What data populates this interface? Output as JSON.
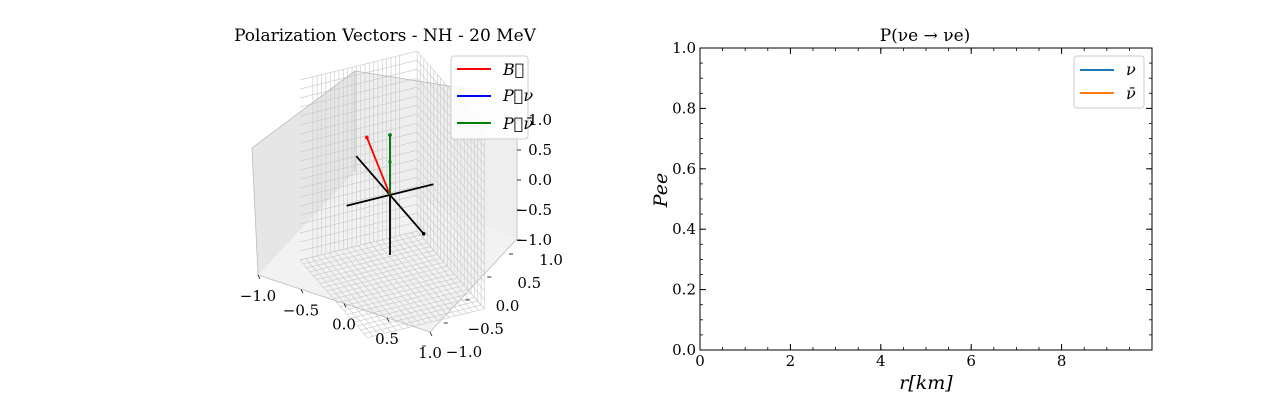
{
  "colors": {
    "B": "#ff0000",
    "P_nu": "#0000ff",
    "P_nubar": "#008000",
    "axes_cross": "#000000",
    "nu_line": "#1f77b4",
    "nubar_line": "#ff7f0e",
    "pane_left": "#e6e6e6",
    "pane_right": "#eeeeee",
    "pane_floor": "#f2f2f2",
    "grid": "#c8c8c8"
  },
  "chart_data": [
    {
      "type": "line3d",
      "title": "Polarization Vectors - NH - 20 MeV",
      "legend": {
        "placement": "top-right",
        "entries": [
          {
            "key": "B",
            "label": "B⃗",
            "color": "#ff0000"
          },
          {
            "key": "P_nu",
            "label": "P⃗ν",
            "color": "#0000ff"
          },
          {
            "key": "P_nubar",
            "label": "P⃗ν̄",
            "color": "#008000"
          }
        ]
      },
      "xlim": [
        -1.0,
        1.0
      ],
      "ylim": [
        -1.0,
        1.0
      ],
      "zlim": [
        -1.0,
        1.0
      ],
      "x_ticks": [
        "−1.0",
        "−0.5",
        "0.0",
        "0.5",
        "1.0"
      ],
      "y_ticks": [
        "−1.0",
        "−0.5",
        "0.0",
        "0.5",
        "1.0"
      ],
      "z_ticks": [
        "−1.0",
        "−0.5",
        "0.0",
        "0.5",
        "1.0"
      ],
      "grid": true,
      "vectors": [
        {
          "key": "B",
          "from": [
            0,
            0,
            0
          ],
          "to": [
            -0.3,
            -0.3,
            0.82
          ]
        },
        {
          "key": "P_nu",
          "from": [
            0,
            0,
            0
          ],
          "to": [
            0.0,
            0.0,
            1.0
          ]
        },
        {
          "key": "P_nubar",
          "from": [
            0,
            0,
            0
          ],
          "to": [
            0.0,
            0.0,
            1.0
          ]
        }
      ],
      "axis_cross": [
        {
          "from": [
            -1,
            0,
            0
          ],
          "to": [
            1,
            0,
            0
          ]
        },
        {
          "from": [
            0,
            -1,
            0
          ],
          "to": [
            0,
            1,
            0
          ]
        },
        {
          "from": [
            0,
            0,
            -1
          ],
          "to": [
            0,
            0,
            0
          ]
        }
      ]
    },
    {
      "type": "line",
      "title": "P(νe → νe)",
      "xlabel": "r[km]",
      "ylabel": "Pee",
      "xlim": [
        0,
        10
      ],
      "ylim": [
        0.0,
        1.0
      ],
      "x_ticks": [
        "0",
        "2",
        "4",
        "6",
        "8"
      ],
      "y_ticks": [
        "0.0",
        "0.2",
        "0.4",
        "0.6",
        "0.8",
        "1.0"
      ],
      "grid": false,
      "legend": {
        "placement": "top-right",
        "entries": [
          {
            "label": "ν",
            "color": "#1f77b4"
          },
          {
            "label": "ν̄",
            "color": "#ff7f0e"
          }
        ]
      },
      "series": [
        {
          "name": "ν",
          "x": [],
          "y": []
        },
        {
          "name": "ν̄",
          "x": [],
          "y": []
        }
      ]
    }
  ]
}
